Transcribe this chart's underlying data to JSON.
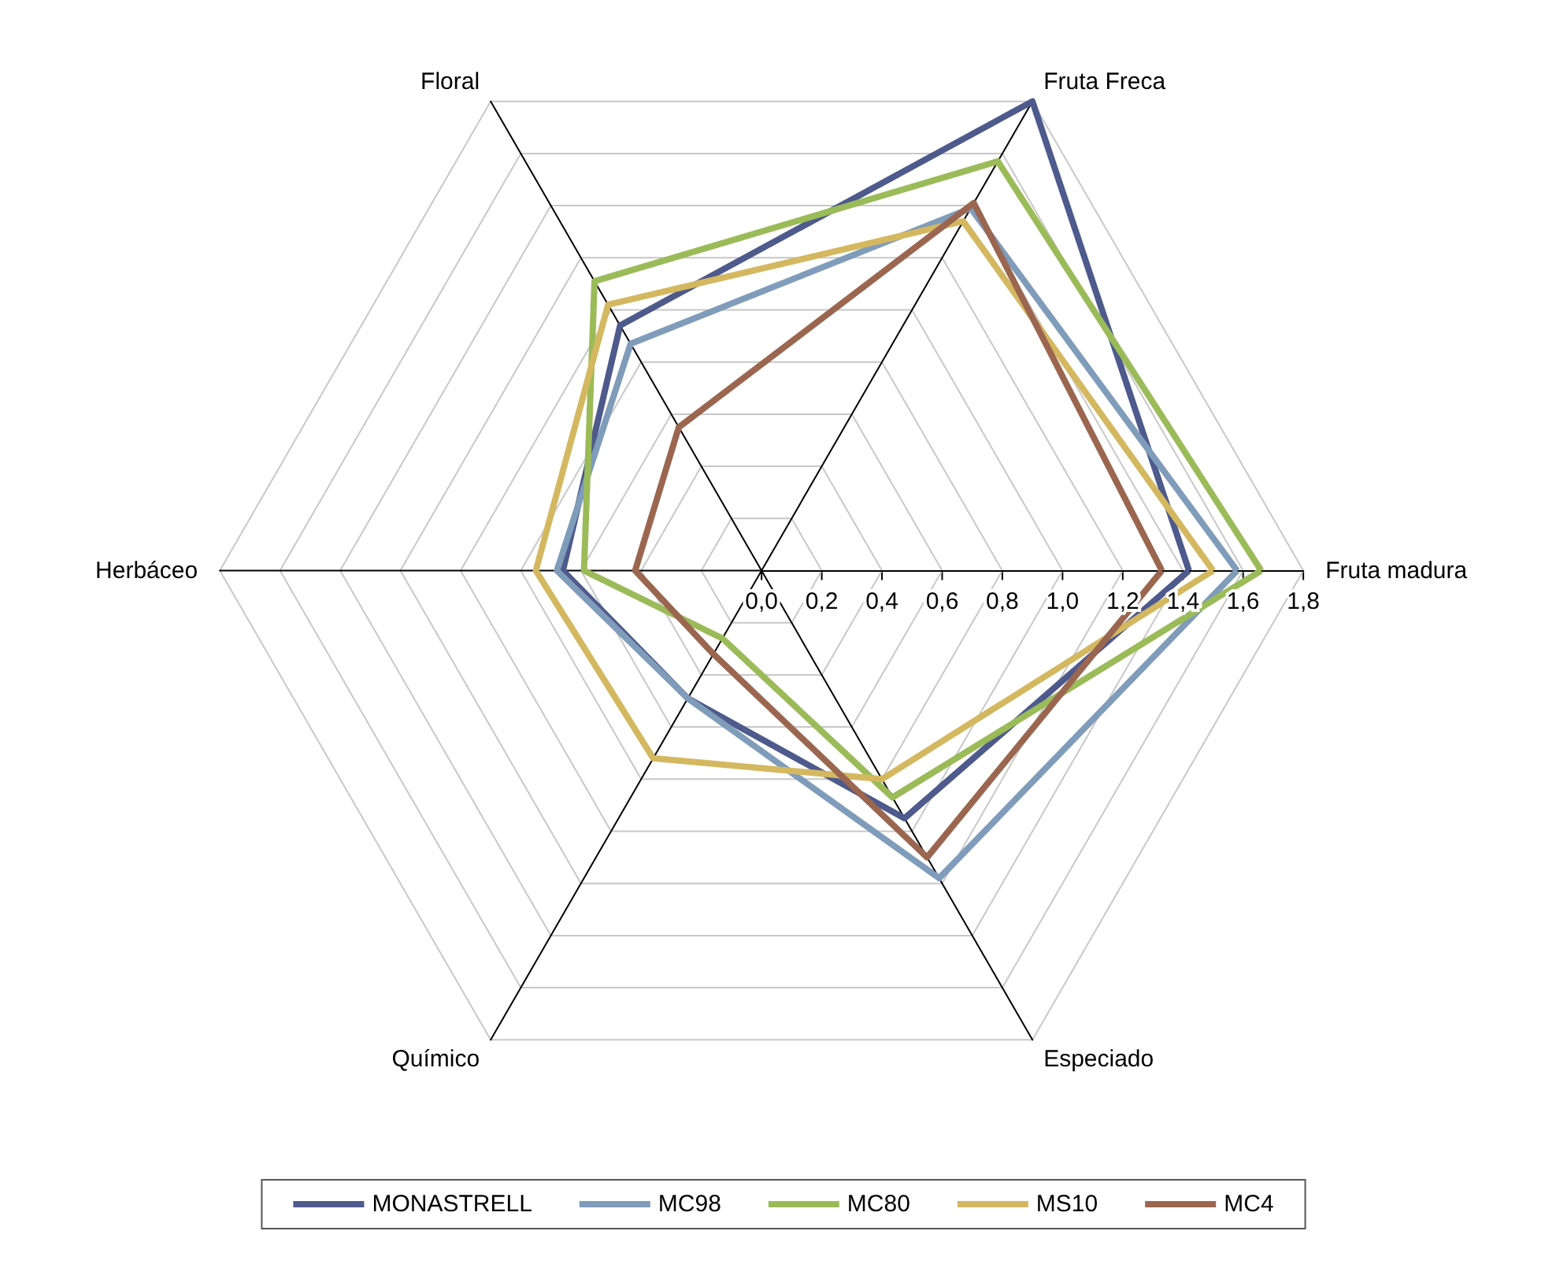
{
  "chart_data": {
    "type": "radar",
    "categories": [
      "Fruta Freca",
      "Fruta madura",
      "Especiado",
      "Químico",
      "Herbáceo",
      "Floral"
    ],
    "series": [
      {
        "name": "MONASTRELL",
        "color": "#4e5a8c",
        "values": [
          1.8,
          1.42,
          0.95,
          0.49,
          0.66,
          0.94
        ]
      },
      {
        "name": "MC98",
        "color": "#7f9cba",
        "values": [
          1.39,
          1.58,
          1.18,
          0.49,
          0.68,
          0.87
        ]
      },
      {
        "name": "MC80",
        "color": "#9bbb59",
        "values": [
          1.57,
          1.66,
          0.87,
          0.26,
          0.59,
          1.11
        ]
      },
      {
        "name": "MS10",
        "color": "#d4b860",
        "values": [
          1.34,
          1.5,
          0.8,
          0.72,
          0.75,
          1.02
        ]
      },
      {
        "name": "MC4",
        "color": "#9b6650",
        "values": [
          1.41,
          1.33,
          1.1,
          0.32,
          0.42,
          0.55
        ]
      }
    ],
    "ylim": [
      0,
      1.8
    ],
    "yticks": [
      {
        "value": 0,
        "label": "0,0"
      },
      {
        "value": 0.2,
        "label": "0,2"
      },
      {
        "value": 0.4,
        "label": "0,4"
      },
      {
        "value": 0.6,
        "label": "0,6"
      },
      {
        "value": 0.8,
        "label": "0,8"
      },
      {
        "value": 1,
        "label": "1,0"
      },
      {
        "value": 1.2,
        "label": "1,2"
      },
      {
        "value": 1.4,
        "label": "1,4"
      },
      {
        "value": 1.6,
        "label": "1,6"
      },
      {
        "value": 1.8,
        "label": "1,8"
      }
    ],
    "grid": true,
    "legend": "bottom",
    "marker": "none",
    "line_style": "solid"
  }
}
